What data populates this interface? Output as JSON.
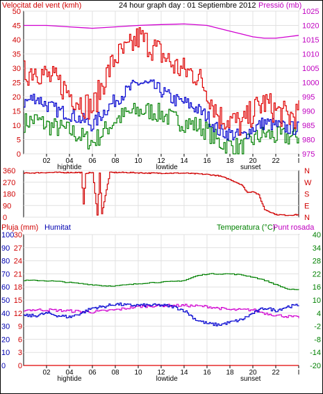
{
  "chart_data": [
    {
      "id": "wind_pressure",
      "type": "line",
      "title": "24 hour graph day : 01 Septiembre 2012",
      "left_axis_label": "Velocitat del vent (kmh)",
      "right_axis_label": "Pressió (mb)",
      "left_ylim": [
        0,
        50
      ],
      "left_ticks": [
        "0",
        "5",
        "10",
        "15",
        "20",
        "25",
        "30",
        "35",
        "40",
        "45",
        "50"
      ],
      "right_ylim": [
        975,
        1025
      ],
      "right_ticks": [
        "975",
        "980",
        "985",
        "990",
        "995",
        "1000",
        "1005",
        "1010",
        "1015",
        "1020",
        "1025"
      ],
      "x_range": [
        0,
        24
      ],
      "x_ticks": [
        "02",
        "04",
        "06",
        "08",
        "10",
        "12",
        "14",
        "16",
        "18",
        "20",
        "22",
        "I"
      ],
      "x_events": [
        {
          "hour": 4.0,
          "label": "hightide"
        },
        {
          "hour": 12.5,
          "label": "lowtide"
        },
        {
          "hour": 19.8,
          "label": "sunset"
        }
      ],
      "colors": {
        "gust": "#e00000",
        "average": "#0000d0",
        "direction_low": "#008000",
        "pressure": "#d000d0"
      },
      "series": [
        {
          "name": "gust",
          "x": [
            0,
            1,
            2,
            3,
            4,
            5,
            6,
            7,
            8,
            9,
            10,
            11,
            12,
            13,
            14,
            15,
            16,
            17,
            18,
            19,
            20,
            21,
            22,
            23,
            24
          ],
          "values": [
            28,
            30,
            27,
            25,
            21,
            18,
            16,
            26,
            34,
            36,
            41,
            38,
            35,
            31,
            29,
            28,
            22,
            13,
            12,
            10,
            15,
            18,
            15,
            13,
            14
          ]
        },
        {
          "name": "average",
          "x": [
            0,
            1,
            2,
            3,
            4,
            5,
            6,
            7,
            8,
            9,
            10,
            11,
            12,
            13,
            14,
            15,
            16,
            17,
            18,
            19,
            20,
            21,
            22,
            23,
            24
          ],
          "values": [
            18,
            20,
            17,
            15,
            14,
            12,
            10,
            15,
            19,
            22,
            25,
            24,
            22,
            19,
            18,
            16,
            13,
            8,
            7,
            6,
            9,
            11,
            10,
            9,
            9
          ]
        },
        {
          "name": "low",
          "x": [
            0,
            1,
            2,
            3,
            4,
            5,
            6,
            7,
            8,
            9,
            10,
            11,
            12,
            13,
            14,
            15,
            16,
            17,
            18,
            19,
            20,
            21,
            22,
            23,
            24
          ],
          "values": [
            11,
            12,
            10,
            9,
            8,
            6,
            4,
            8,
            12,
            14,
            15,
            15,
            14,
            12,
            11,
            10,
            8,
            4,
            3,
            2,
            5,
            7,
            6,
            6,
            6
          ]
        },
        {
          "name": "pressure",
          "x": [
            0,
            2,
            4,
            6,
            8,
            10,
            12,
            14,
            16,
            17,
            18,
            19,
            20,
            21,
            22,
            23,
            24
          ],
          "values": [
            1020,
            1020,
            1019.5,
            1019,
            1019.5,
            1020,
            1020.3,
            1020.5,
            1020,
            1019,
            1018,
            1017,
            1016,
            1015.5,
            1015.5,
            1016,
            1016.5
          ]
        }
      ]
    },
    {
      "id": "wind_direction",
      "type": "line",
      "left_ylim": [
        0,
        360
      ],
      "left_ticks": [
        "0",
        "90",
        "180",
        "270",
        "360"
      ],
      "right_ticks": [
        "N",
        "E",
        "S",
        "W",
        "N"
      ],
      "x_range": [
        0,
        24
      ],
      "series": [
        {
          "name": "direction",
          "x": [
            0,
            2,
            4,
            5,
            5.2,
            5.4,
            6,
            6.4,
            6.6,
            6.8,
            7.5,
            9,
            11,
            13,
            14,
            15,
            16,
            17,
            18,
            18.5,
            19,
            19.5,
            20,
            20.5,
            21,
            22,
            23,
            24
          ],
          "values": [
            340,
            345,
            345,
            345,
            100,
            340,
            345,
            20,
            340,
            30,
            345,
            345,
            340,
            340,
            340,
            335,
            330,
            320,
            290,
            270,
            250,
            190,
            200,
            170,
            60,
            20,
            15,
            20
          ]
        }
      ]
    },
    {
      "id": "humidity_temperature",
      "type": "line",
      "title_left": "Pluja (mm)",
      "title_mid": "Humitat",
      "title_right_1": "Temperatura (°C)",
      "title_right_2": "Punt rosada",
      "left_ylim": [
        0,
        100
      ],
      "left_ticks": [
        "0",
        "10",
        "20",
        "30",
        "40",
        "50",
        "60",
        "70",
        "80",
        "90",
        "100"
      ],
      "inner_ylim": [
        0,
        30
      ],
      "inner_ticks": [
        "0",
        "3",
        "6",
        "9",
        "12",
        "15",
        "18",
        "21",
        "24",
        "27",
        "30"
      ],
      "right_ylim": [
        -20,
        40
      ],
      "right_ticks": [
        "-20",
        "-14",
        "-8",
        "-2",
        "4",
        "10",
        "16",
        "22",
        "28",
        "34",
        "40"
      ],
      "x_range": [
        0,
        24
      ],
      "x_ticks": [
        "02",
        "04",
        "06",
        "08",
        "10",
        "12",
        "14",
        "16",
        "18",
        "20",
        "22",
        "I"
      ],
      "x_events": [
        {
          "hour": 4.0,
          "label": "hightide"
        },
        {
          "hour": 12.5,
          "label": "lowtide"
        },
        {
          "hour": 19.8,
          "label": "sunset"
        }
      ],
      "colors": {
        "rain": "#e00000",
        "humidity": "#0000d0",
        "temperature": "#008000",
        "dewpoint": "#d000d0"
      },
      "series": [
        {
          "name": "Temperatura",
          "x": [
            0,
            1,
            2,
            3,
            4,
            5,
            6,
            7,
            8,
            9,
            10,
            11,
            12,
            13,
            14,
            15,
            16,
            17,
            18,
            19,
            20,
            21,
            22,
            23,
            24
          ],
          "values": [
            19,
            19,
            18.8,
            18.5,
            18,
            17.5,
            17,
            16.5,
            16.5,
            17,
            17.5,
            18,
            18.2,
            18.5,
            19,
            21,
            22,
            22,
            22,
            21.5,
            20.5,
            19,
            17,
            15,
            14.5
          ]
        },
        {
          "name": "Humitat",
          "x": [
            0,
            1,
            2,
            3,
            4,
            5,
            6,
            7,
            8,
            9,
            10,
            11,
            12,
            13,
            14,
            15,
            16,
            17,
            18,
            19,
            20,
            21,
            22,
            23,
            24
          ],
          "values": [
            38,
            38,
            40,
            38,
            37,
            40,
            44,
            45,
            47,
            46,
            46,
            46,
            46,
            45,
            42,
            35,
            32,
            31,
            33,
            35,
            40,
            44,
            42,
            45,
            46
          ]
        },
        {
          "name": "Punt rosada",
          "x": [
            0,
            2,
            4,
            6,
            8,
            10,
            12,
            14,
            16,
            18,
            19,
            20,
            21,
            22,
            23,
            24
          ],
          "values": [
            5.5,
            5.5,
            5,
            4.5,
            5.5,
            7,
            7.5,
            7.5,
            7,
            5.5,
            5.5,
            5.5,
            4,
            3,
            2.5,
            2
          ]
        },
        {
          "name": "Pluja",
          "x": [
            0,
            24
          ],
          "values": [
            0,
            0
          ]
        }
      ]
    }
  ]
}
